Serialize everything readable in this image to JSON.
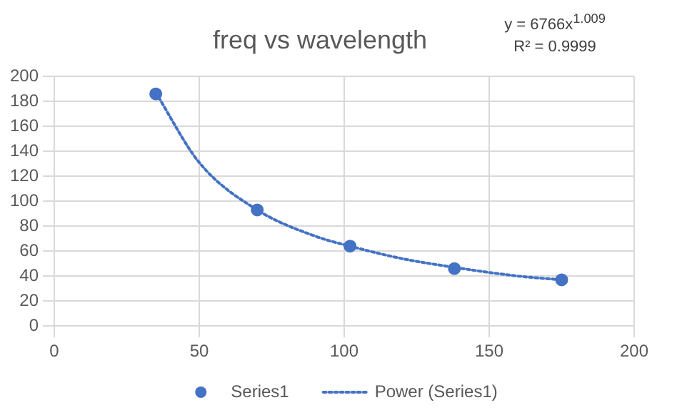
{
  "chart_data": {
    "type": "scatter",
    "title": "freq vs wavelength",
    "annotations": [
      "y = 6766x$^{1.009}$",
      "R² = 0.9999"
    ],
    "series": [
      {
        "name": "Series1",
        "color": "#4472c4",
        "marker": "circle",
        "x": [
          35,
          70,
          102,
          138,
          175
        ],
        "values": [
          186,
          93,
          64,
          46,
          37
        ]
      },
      {
        "name": "Power (Series1)",
        "type": "line",
        "color": "#4472c4",
        "marker": "none",
        "line_style": "dotted",
        "x": [
          35,
          50,
          70,
          90,
          102,
          120,
          138,
          160,
          175
        ],
        "values": [
          187,
          131,
          93,
          72,
          64,
          54,
          47,
          40,
          37
        ]
      }
    ],
    "xlim": [
      0,
      200
    ],
    "xticks": [
      0,
      50,
      100,
      150,
      200
    ],
    "ylim": [
      0,
      200
    ],
    "yticks": [
      0,
      20,
      40,
      60,
      80,
      100,
      120,
      140,
      160,
      180,
      200
    ],
    "grid": true,
    "legend": "bottom"
  }
}
